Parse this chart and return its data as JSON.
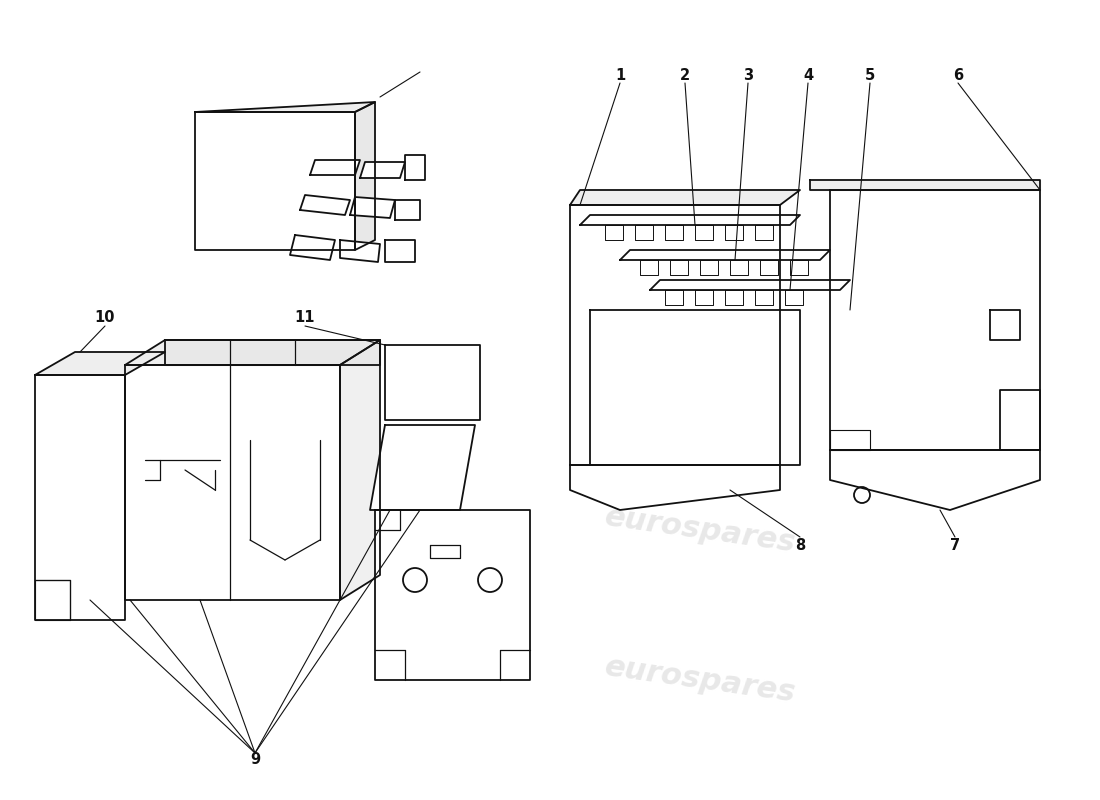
{
  "bg_color": "#ffffff",
  "line_color": "#111111",
  "wm_color": "#cccccc",
  "wm_text": "eurospares",
  "figsize": [
    11.0,
    8.0
  ],
  "dpi": 100
}
